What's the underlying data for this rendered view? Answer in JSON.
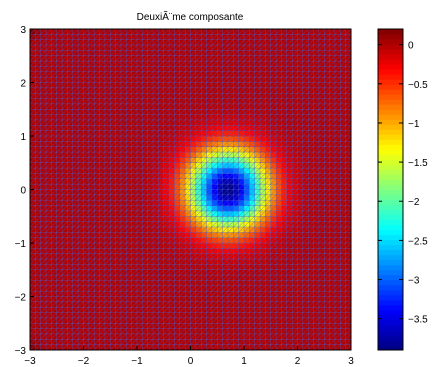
{
  "chart_data": {
    "type": "heatmap",
    "title": "DeuxiÃ¨me composante",
    "xlim": [
      -3,
      3
    ],
    "ylim": [
      -3,
      3
    ],
    "xticks": [
      "−3",
      "−2",
      "−1",
      "0",
      "1",
      "2",
      "3"
    ],
    "yticks": [
      "3",
      "2",
      "1",
      "0",
      "−1",
      "−2",
      "−3"
    ],
    "colorbar": {
      "clim": [
        -3.9,
        0.2
      ],
      "ticks": [
        "0",
        "−0.5",
        "−1",
        "−1.5",
        "−2",
        "−2.5",
        "−3",
        "−3.5"
      ],
      "tick_values": [
        0,
        -0.5,
        -1,
        -1.5,
        -2,
        -2.5,
        -3,
        -3.5
      ],
      "colormap": "jet"
    },
    "surface": {
      "description_function": "negative gaussian well",
      "center": [
        0.7,
        0.0
      ],
      "sigma": 0.5,
      "min": -3.9,
      "baseline": 0.0,
      "corner_bumps": [
        {
          "x": -3,
          "y": 3,
          "value": 0.2
        },
        {
          "x": -3,
          "y": -3,
          "value": 0.2
        }
      ]
    },
    "grid": true,
    "grid_color": "#4a5bd0"
  }
}
